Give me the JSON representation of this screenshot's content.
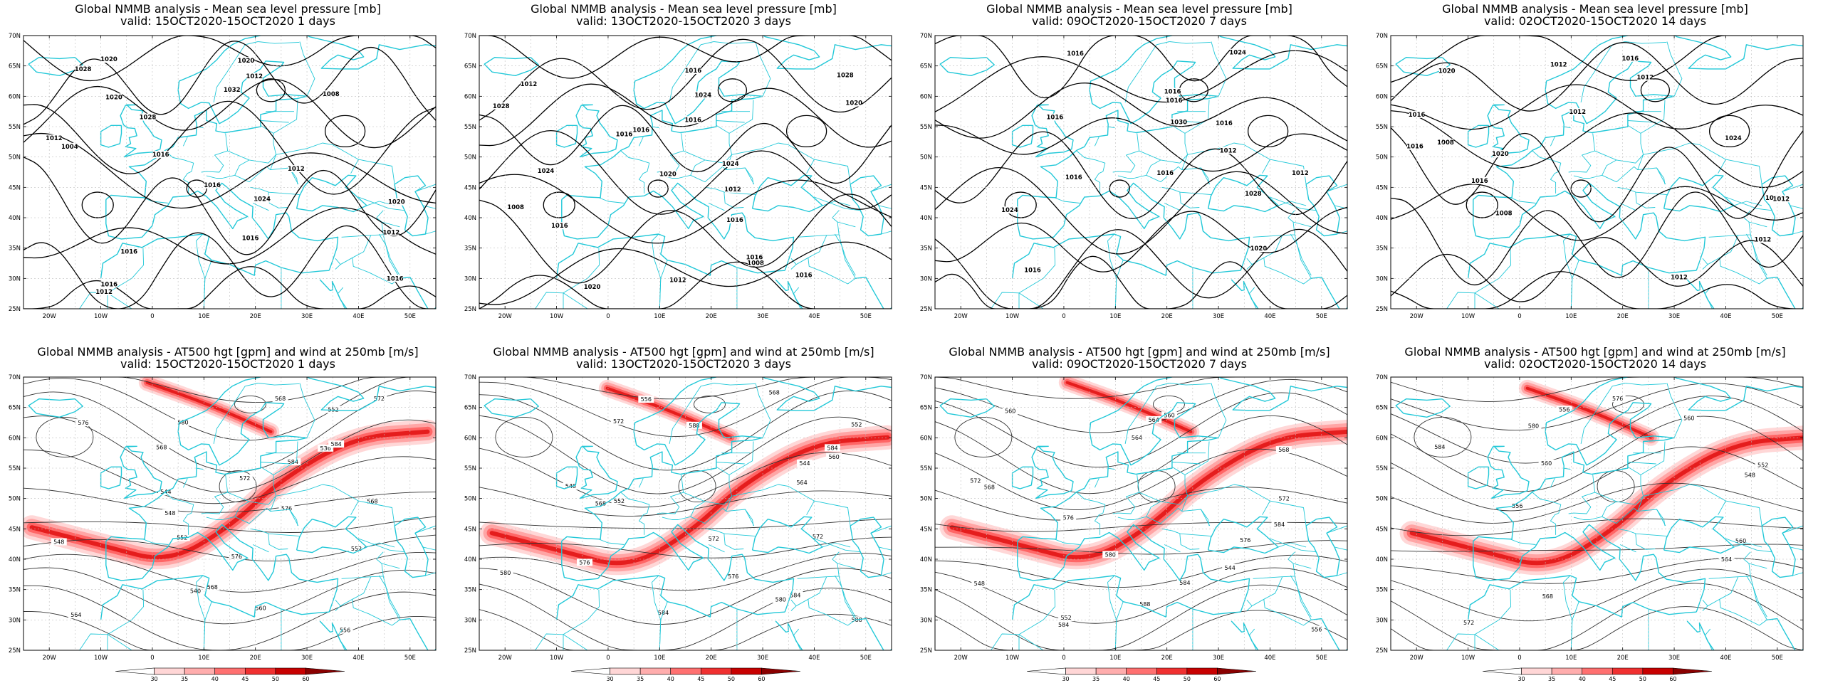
{
  "mslp_panels": [
    {
      "title_line1": "Global NMMB analysis - Mean sea level pressure [mb]",
      "title_line2": "valid: 15OCT2020-15OCT2020   1 days",
      "labels": [
        "1028",
        "1032",
        "1028",
        "1012",
        "1016",
        "1016",
        "1012",
        "1016",
        "1016",
        "1020",
        "1012",
        "1008",
        "1004",
        "1012",
        "1024",
        "1020",
        "1016",
        "1016",
        "1012",
        "1020",
        "1020"
      ]
    },
    {
      "title_line1": "Global NMMB analysis - Mean sea level pressure [mb]",
      "title_line2": "valid: 13OCT2020-15OCT2020   3 days",
      "labels": [
        "1028",
        "1024",
        "1028",
        "1016",
        "1024",
        "1012",
        "1008",
        "1016",
        "1008",
        "1020",
        "1012",
        "1016",
        "1016",
        "1024",
        "1020",
        "1016",
        "1016",
        "1016",
        "1012",
        "1016",
        "1020"
      ]
    },
    {
      "title_line1": "Global NMMB analysis - Mean sea level pressure [mb]",
      "title_line2": "valid: 09OCT2020-15OCT2020   7 days",
      "labels": [
        "1024",
        "1016",
        "1016",
        "1012",
        "1012",
        "1028",
        "1024",
        "1020",
        "1016",
        "1016",
        "1016",
        "1016",
        "1030",
        "1016",
        "1016"
      ]
    },
    {
      "title_line1": "Global NMMB analysis - Mean sea level pressure [mb]",
      "title_line2": "valid: 02OCT2020-15OCT2020   14 days",
      "labels": [
        "1016",
        "1012",
        "1012",
        "1008",
        "1020",
        "1024",
        "1008",
        "1012",
        "1012",
        "1012",
        "1020",
        "1016",
        "1024",
        "1016",
        "1016",
        "1012"
      ]
    }
  ],
  "z500_panels": [
    {
      "title_line1": "Global NMMB analysis - AT500 hgt [gpm] and wind at 250mb [m/s]",
      "title_line2": "valid: 15OCT2020-15OCT2020   1 days",
      "labels": [
        "572",
        "576",
        "536",
        "544",
        "548",
        "552",
        "576",
        "568",
        "560",
        "556",
        "552",
        "568",
        "572",
        "576",
        "552",
        "548",
        "540",
        "564",
        "568",
        "580",
        "584",
        "584",
        "568"
      ]
    },
    {
      "title_line1": "Global NMMB analysis - AT500 hgt [gpm] and wind at 250mb [m/s]",
      "title_line2": "valid: 13OCT2020-15OCT2020   3 days",
      "labels": [
        "568",
        "572",
        "544",
        "548",
        "552",
        "572",
        "576",
        "580",
        "584",
        "556",
        "552",
        "560",
        "564",
        "568",
        "572",
        "576",
        "580",
        "584",
        "588",
        "588",
        "584"
      ]
    },
    {
      "title_line1": "Global NMMB analysis - AT500 hgt [gpm] and wind at 250mb [m/s]",
      "title_line2": "valid: 09OCT2020-15OCT2020   7 days",
      "labels": [
        "560",
        "564",
        "568",
        "572",
        "576",
        "584",
        "544",
        "548",
        "552",
        "556",
        "560",
        "564",
        "568",
        "572",
        "576",
        "580",
        "584",
        "588",
        "584"
      ]
    },
    {
      "title_line1": "Global NMMB analysis - AT500 hgt [gpm] and wind at 250mb [m/s]",
      "title_line2": "valid: 02OCT2020-15OCT2020   14 days",
      "labels": [
        "556",
        "560",
        "552",
        "548",
        "556",
        "560",
        "564",
        "568",
        "572",
        "576",
        "580",
        "584",
        "560"
      ]
    }
  ],
  "map_axes": {
    "lat_ticks": [
      "70N",
      "65N",
      "60N",
      "55N",
      "50N",
      "45N",
      "40N",
      "35N",
      "30N",
      "25N"
    ],
    "lon_ticks": [
      "20W",
      "10W",
      "0",
      "10E",
      "20E",
      "30E",
      "40E",
      "50E"
    ]
  },
  "colorbar": {
    "ticks": [
      "30",
      "35",
      "40",
      "45",
      "50",
      "60"
    ],
    "colors": [
      "#ffffff",
      "#ffd6d6",
      "#ffadad",
      "#ff7070",
      "#f03030",
      "#c80000",
      "#8a0000"
    ]
  },
  "colors": {
    "coast": "#22c8d8",
    "contour": "#000000",
    "jet": "#ff3030"
  }
}
